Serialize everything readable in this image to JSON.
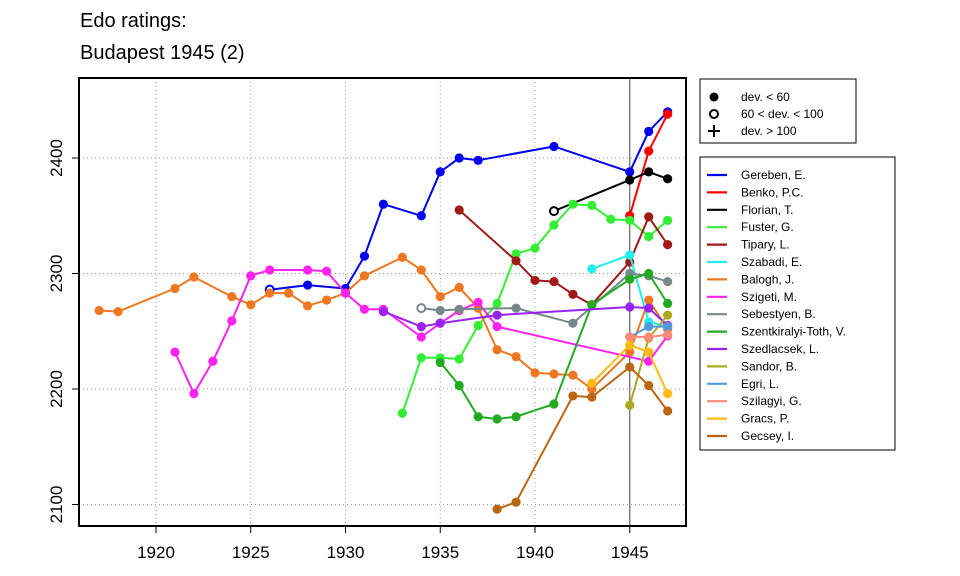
{
  "chart_data": {
    "type": "line",
    "title": "Edo ratings:",
    "subtitle": "Budapest 1945 (2)",
    "xlabel": "",
    "ylabel": "",
    "xlim": [
      1916,
      1948
    ],
    "ylim": [
      2080,
      2475
    ],
    "x_ticks": [
      1920,
      1925,
      1930,
      1935,
      1940,
      1945
    ],
    "y_ticks": [
      2100,
      2200,
      2300,
      2400
    ],
    "grid": true,
    "event_year": 1945,
    "deviation_legend": [
      {
        "symbol": "filled-circle",
        "label": "dev. < 60"
      },
      {
        "symbol": "open-circle",
        "label": "60 < dev. < 100"
      },
      {
        "symbol": "plus",
        "label": "dev. > 100"
      }
    ],
    "legend_position": "right",
    "series": [
      {
        "name": "Gereben, E.",
        "color": "#0000ee",
        "points": [
          [
            1926,
            2286,
            "o"
          ],
          [
            1928,
            2290,
            "f"
          ],
          [
            1930,
            2287,
            "f"
          ],
          [
            1931,
            2315,
            "f"
          ],
          [
            1932,
            2360,
            "f"
          ],
          [
            1934,
            2350,
            "f"
          ],
          [
            1935,
            2388,
            "f"
          ],
          [
            1936,
            2400,
            "f"
          ],
          [
            1937,
            2398,
            "f"
          ],
          [
            1941,
            2410,
            "f"
          ],
          [
            1945,
            2388,
            "f"
          ],
          [
            1946,
            2423,
            "f"
          ],
          [
            1947,
            2440,
            "f"
          ]
        ]
      },
      {
        "name": "Benko, P.C.",
        "color": "#ff0000",
        "points": [
          [
            1945,
            2350,
            "f"
          ],
          [
            1946,
            2406,
            "f"
          ],
          [
            1947,
            2438,
            "f"
          ]
        ]
      },
      {
        "name": "Florian, T.",
        "color": "#000000",
        "points": [
          [
            1941,
            2354,
            "o"
          ],
          [
            1945,
            2381,
            "f"
          ],
          [
            1946,
            2388,
            "f"
          ],
          [
            1947,
            2382,
            "f"
          ]
        ]
      },
      {
        "name": "Fuster, G.",
        "color": "#33ee33",
        "points": [
          [
            1933,
            2179,
            "f"
          ],
          [
            1934,
            2227,
            "f"
          ],
          [
            1935,
            2227,
            "f"
          ],
          [
            1936,
            2226,
            "f"
          ],
          [
            1937,
            2255,
            "f"
          ],
          [
            1938,
            2274,
            "f"
          ],
          [
            1939,
            2317,
            "f"
          ],
          [
            1940,
            2322,
            "f"
          ],
          [
            1941,
            2342,
            "f"
          ],
          [
            1942,
            2360,
            "f"
          ],
          [
            1943,
            2359,
            "f"
          ],
          [
            1944,
            2347,
            "f"
          ],
          [
            1945,
            2346,
            "f"
          ],
          [
            1946,
            2332,
            "f"
          ],
          [
            1947,
            2346,
            "f"
          ]
        ]
      },
      {
        "name": "Tipary, L.",
        "color": "#a01a1a",
        "points": [
          [
            1936,
            2355,
            "f"
          ],
          [
            1939,
            2311,
            "f"
          ],
          [
            1940,
            2294,
            "f"
          ],
          [
            1941,
            2293,
            "f"
          ],
          [
            1942,
            2282,
            "f"
          ],
          [
            1943,
            2273,
            "f"
          ],
          [
            1945,
            2310,
            "f"
          ],
          [
            1946,
            2349,
            "f"
          ],
          [
            1947,
            2325,
            "f"
          ]
        ]
      },
      {
        "name": "Szabadi, E.",
        "color": "#22eeee",
        "points": [
          [
            1943,
            2304,
            "f"
          ],
          [
            1945,
            2316,
            "f"
          ],
          [
            1946,
            2258,
            "f"
          ],
          [
            1947,
            2254,
            "f"
          ]
        ]
      },
      {
        "name": "Balogh, J.",
        "color": "#ee7722",
        "points": [
          [
            1917,
            2268,
            "f"
          ],
          [
            1918,
            2267,
            "f"
          ],
          [
            1921,
            2287,
            "f"
          ],
          [
            1922,
            2297,
            "f"
          ],
          [
            1924,
            2280,
            "f"
          ],
          [
            1925,
            2273,
            "f"
          ],
          [
            1926,
            2283,
            "f"
          ],
          [
            1927,
            2283,
            "f"
          ],
          [
            1928,
            2272,
            "f"
          ],
          [
            1929,
            2277,
            "f"
          ],
          [
            1930,
            2283,
            "f"
          ],
          [
            1931,
            2298,
            "f"
          ],
          [
            1933,
            2314,
            "f"
          ],
          [
            1934,
            2303,
            "f"
          ],
          [
            1935,
            2280,
            "f"
          ],
          [
            1936,
            2288,
            "f"
          ],
          [
            1937,
            2270,
            "f"
          ],
          [
            1938,
            2234,
            "f"
          ],
          [
            1939,
            2228,
            "f"
          ],
          [
            1940,
            2214,
            "f"
          ],
          [
            1941,
            2213,
            "f"
          ],
          [
            1942,
            2212,
            "f"
          ],
          [
            1943,
            2200,
            "f"
          ],
          [
            1945,
            2232,
            "f"
          ],
          [
            1946,
            2277,
            "f"
          ],
          [
            1947,
            2252,
            "f"
          ]
        ]
      },
      {
        "name": "Szigeti, M.",
        "color": "#ff22ee",
        "points": [
          [
            1921,
            2232,
            "f"
          ],
          [
            1922,
            2196,
            "f"
          ],
          [
            1923,
            2224,
            "f"
          ],
          [
            1924,
            2259,
            "f"
          ],
          [
            1925,
            2298,
            "f"
          ],
          [
            1926,
            2303,
            "f"
          ],
          [
            1928,
            2303,
            "f"
          ],
          [
            1929,
            2302,
            "f"
          ],
          [
            1930,
            2283,
            "f"
          ],
          [
            1931,
            2269,
            "f"
          ],
          [
            1932,
            2269,
            "f"
          ],
          [
            1934,
            2245,
            "f"
          ],
          [
            1935,
            2257,
            "f"
          ],
          [
            1936,
            2268,
            "f"
          ],
          [
            1937,
            2275,
            "f"
          ],
          [
            1938,
            2254,
            "f"
          ],
          [
            1946,
            2224,
            "f"
          ],
          [
            1947,
            2246,
            "f"
          ]
        ]
      },
      {
        "name": "Sebestyen, B.",
        "color": "#778888",
        "points": [
          [
            1934,
            2270,
            "o"
          ],
          [
            1935,
            2268,
            "f"
          ],
          [
            1936,
            2269,
            "f"
          ],
          [
            1939,
            2270,
            "f"
          ],
          [
            1942,
            2257,
            "f"
          ],
          [
            1945,
            2300,
            "f"
          ],
          [
            1946,
            2298,
            "f"
          ],
          [
            1947,
            2293,
            "f"
          ]
        ]
      },
      {
        "name": "Szentkiralyi-Toth, V.",
        "color": "#22aa22",
        "points": [
          [
            1935,
            2223,
            "f"
          ],
          [
            1936,
            2203,
            "f"
          ],
          [
            1937,
            2176,
            "f"
          ],
          [
            1938,
            2174,
            "f"
          ],
          [
            1939,
            2176,
            "f"
          ],
          [
            1941,
            2187,
            "f"
          ],
          [
            1943,
            2273,
            "f"
          ],
          [
            1945,
            2295,
            "f"
          ],
          [
            1946,
            2300,
            "f"
          ],
          [
            1947,
            2274,
            "f"
          ]
        ]
      },
      {
        "name": "Szedlacsek, L.",
        "color": "#9922ee",
        "points": [
          [
            1932,
            2267,
            "f"
          ],
          [
            1934,
            2254,
            "f"
          ],
          [
            1935,
            2257,
            "f"
          ],
          [
            1938,
            2264,
            "f"
          ],
          [
            1945,
            2271,
            "f"
          ],
          [
            1946,
            2270,
            "f"
          ],
          [
            1947,
            2255,
            "f"
          ]
        ]
      },
      {
        "name": "Sandor, B.",
        "color": "#aaaa22",
        "points": [
          [
            1945,
            2186,
            "f"
          ],
          [
            1946,
            2244,
            "f"
          ],
          [
            1947,
            2264,
            "f"
          ]
        ]
      },
      {
        "name": "Egri, L.",
        "color": "#5599dd",
        "points": [
          [
            1945,
            2245,
            "f"
          ],
          [
            1946,
            2254,
            "f"
          ],
          [
            1947,
            2254,
            "f"
          ]
        ]
      },
      {
        "name": "Szilagyi, G.",
        "color": "#ff8877",
        "points": [
          [
            1945,
            2245,
            "f"
          ],
          [
            1946,
            2245,
            "f"
          ],
          [
            1947,
            2247,
            "f"
          ]
        ]
      },
      {
        "name": "Gracs, P.",
        "color": "#ffbb11",
        "points": [
          [
            1943,
            2205,
            "f"
          ],
          [
            1945,
            2238,
            "f"
          ],
          [
            1946,
            2232,
            "f"
          ],
          [
            1947,
            2196,
            "f"
          ]
        ]
      },
      {
        "name": "Gecsey, I.",
        "color": "#bb6611",
        "points": [
          [
            1938,
            2096,
            "f"
          ],
          [
            1939,
            2102,
            "f"
          ],
          [
            1942,
            2194,
            "f"
          ],
          [
            1943,
            2193,
            "f"
          ],
          [
            1945,
            2219,
            "f"
          ],
          [
            1946,
            2203,
            "f"
          ],
          [
            1947,
            2181,
            "f"
          ]
        ]
      }
    ]
  }
}
